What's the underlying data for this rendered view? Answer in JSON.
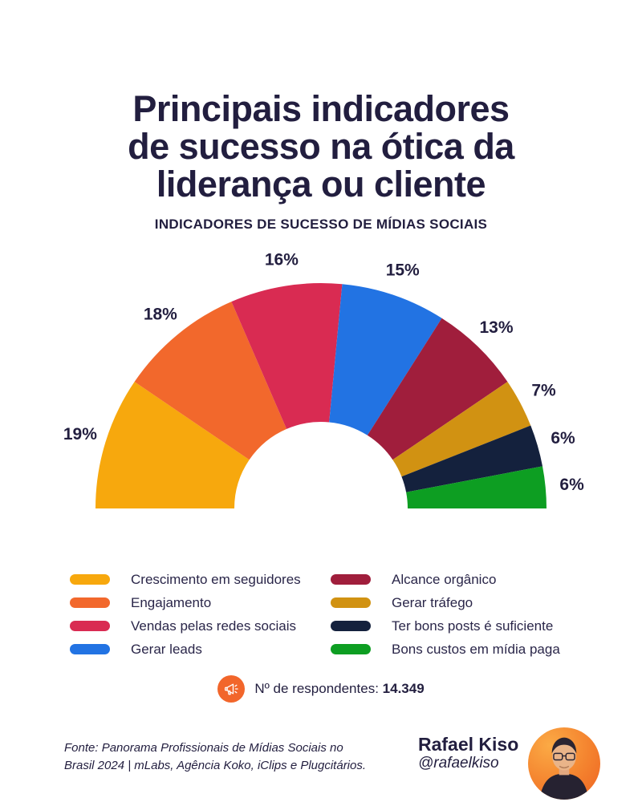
{
  "header": {
    "title_lines": [
      "Principais indicadores",
      "de sucesso na ótica da",
      "liderança ou cliente"
    ],
    "subtitle": "INDICADORES DE SUCESSO DE MÍDIAS SOCIAIS"
  },
  "chart_data": {
    "type": "pie",
    "variant": "semicircle-donut",
    "title": "Indicadores de sucesso de mídias sociais",
    "unit": "%",
    "total": 100,
    "items": [
      {
        "label": "Crescimento em seguidores",
        "value": 19,
        "color": "#F7A80D"
      },
      {
        "label": "Engajamento",
        "value": 18,
        "color": "#F2682C"
      },
      {
        "label": "Vendas pelas redes sociais",
        "value": 16,
        "color": "#D92B52"
      },
      {
        "label": "Gerar leads",
        "value": 15,
        "color": "#2273E3"
      },
      {
        "label": "Alcance orgânico",
        "value": 13,
        "color": "#A01E3C"
      },
      {
        "label": "Gerar tráfego",
        "value": 7,
        "color": "#D19212"
      },
      {
        "label": "Ter bons posts é suficiente",
        "value": 6,
        "color": "#14213D"
      },
      {
        "label": "Bons custos em mídia paga",
        "value": 6,
        "color": "#0D9E22"
      }
    ],
    "layout": {
      "start_angle_deg": 180,
      "end_angle_deg": 0,
      "label_format": "{value}%",
      "legend_position": "bottom",
      "legend_columns": 2,
      "grid": false
    }
  },
  "respondents": {
    "label_prefix": "Nº de respondentes:",
    "value": "14.349",
    "icon": "megaphone-icon",
    "icon_color": "#F2662B"
  },
  "footer": {
    "source_lines": [
      "Fonte: Panorama Profissionais de Mídias Sociais no",
      "Brasil 2024 | mLabs, Agência Koko, iClips e Plugcitários."
    ],
    "author_name": "Rafael Kiso",
    "author_handle": "@rafaelkiso"
  },
  "colors": {
    "ink": "#221E3F",
    "background": "#FFFFFF",
    "badge": "#F2662B"
  }
}
